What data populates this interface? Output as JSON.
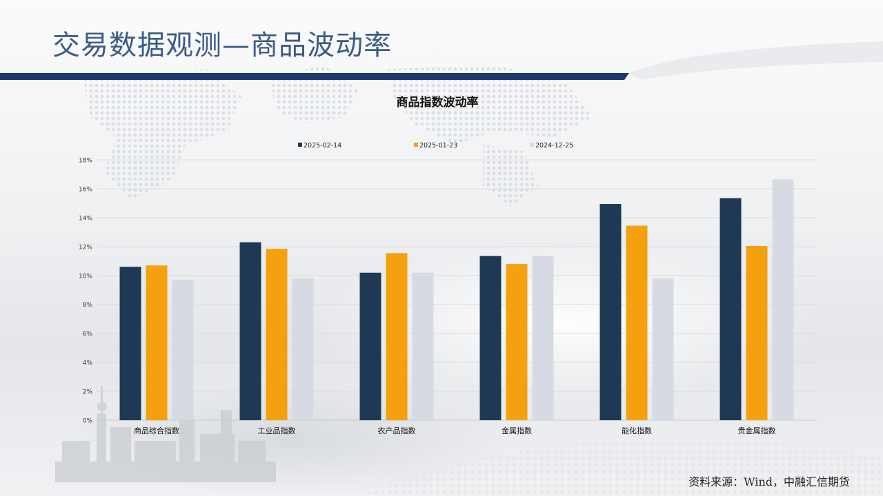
{
  "slide": {
    "title": "交易数据观测—商品波动率",
    "source": "资料来源：Wind，中融汇信期货"
  },
  "colors": {
    "title": "#3c5b86",
    "header_bar": "#1c3a6e",
    "series": [
      "#1f3954",
      "#f5a00f",
      "#d6dbe3"
    ]
  },
  "chart_data": {
    "type": "bar",
    "title": "商品指数波动率",
    "categories": [
      "商品综合指数",
      "工业品指数",
      "农产品指数",
      "金属指数",
      "能化指数",
      "贵金属指数"
    ],
    "series": [
      {
        "name": "2025-02-14",
        "color": "#1f3954",
        "values": [
          10.6,
          12.3,
          10.2,
          11.35,
          14.95,
          15.35
        ]
      },
      {
        "name": "2025-01-23",
        "color": "#f5a00f",
        "values": [
          10.7,
          11.85,
          11.55,
          10.8,
          13.45,
          12.05
        ]
      },
      {
        "name": "2024-12-25",
        "color": "#d6dbe3",
        "values": [
          9.7,
          9.8,
          10.2,
          11.35,
          9.8,
          16.65
        ]
      }
    ],
    "ylim": [
      0,
      18
    ],
    "yticks": [
      "0%",
      "2%",
      "4%",
      "6%",
      "8%",
      "10%",
      "12%",
      "14%",
      "16%",
      "18%"
    ],
    "ytick_values": [
      0,
      2,
      4,
      6,
      8,
      10,
      12,
      14,
      16,
      18
    ],
    "grid": true,
    "legend_position": "top"
  }
}
